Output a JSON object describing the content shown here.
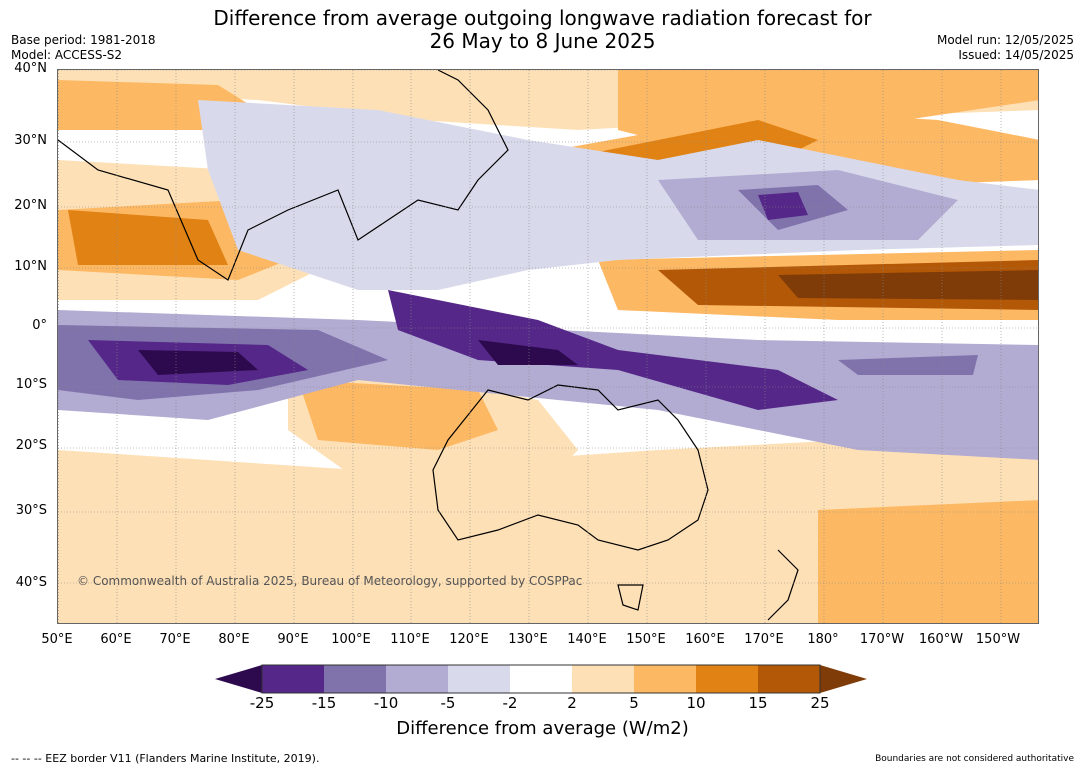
{
  "title_line1": "Difference from average outgoing longwave radiation forecast for",
  "title_line2": "26 May to 8 June 2025",
  "base_period": "Base period: 1981-2018",
  "model": "Model: ACCESS-S2",
  "model_run": "Model run: 12/05/2025",
  "issued": "Issued: 14/05/2025",
  "copyright": "© Commonwealth of Australia 2025, Bureau of Meteorology, supported by COSPPac",
  "lat_labels": [
    "40°N",
    "30°N",
    "20°N",
    "10°N",
    "0°",
    "10°S",
    "20°S",
    "30°S",
    "40°S"
  ],
  "lon_labels": [
    "50°E",
    "60°E",
    "70°E",
    "80°E",
    "90°E",
    "100°E",
    "110°E",
    "120°E",
    "130°E",
    "140°E",
    "150°E",
    "160°E",
    "170°E",
    "180°",
    "170°W",
    "160°W",
    "150°W"
  ],
  "colorbar": {
    "ticks": [
      "-25",
      "-15",
      "-10",
      "-5",
      "-2",
      "2",
      "5",
      "10",
      "15",
      "25"
    ],
    "colors": [
      "#2d0a4e",
      "#542788",
      "#8073ac",
      "#b2abd2",
      "#d8daeb",
      "#ffffff",
      "#fee0b6",
      "#fdb863",
      "#e08214",
      "#b35806",
      "#7f3b08"
    ],
    "title": "Difference from average (W/m2)"
  },
  "footer_left": "--  --  -- EEZ border V11 (Flanders Marine Institute, 2019).",
  "footer_right": "Boundaries are not considered authoritative"
}
